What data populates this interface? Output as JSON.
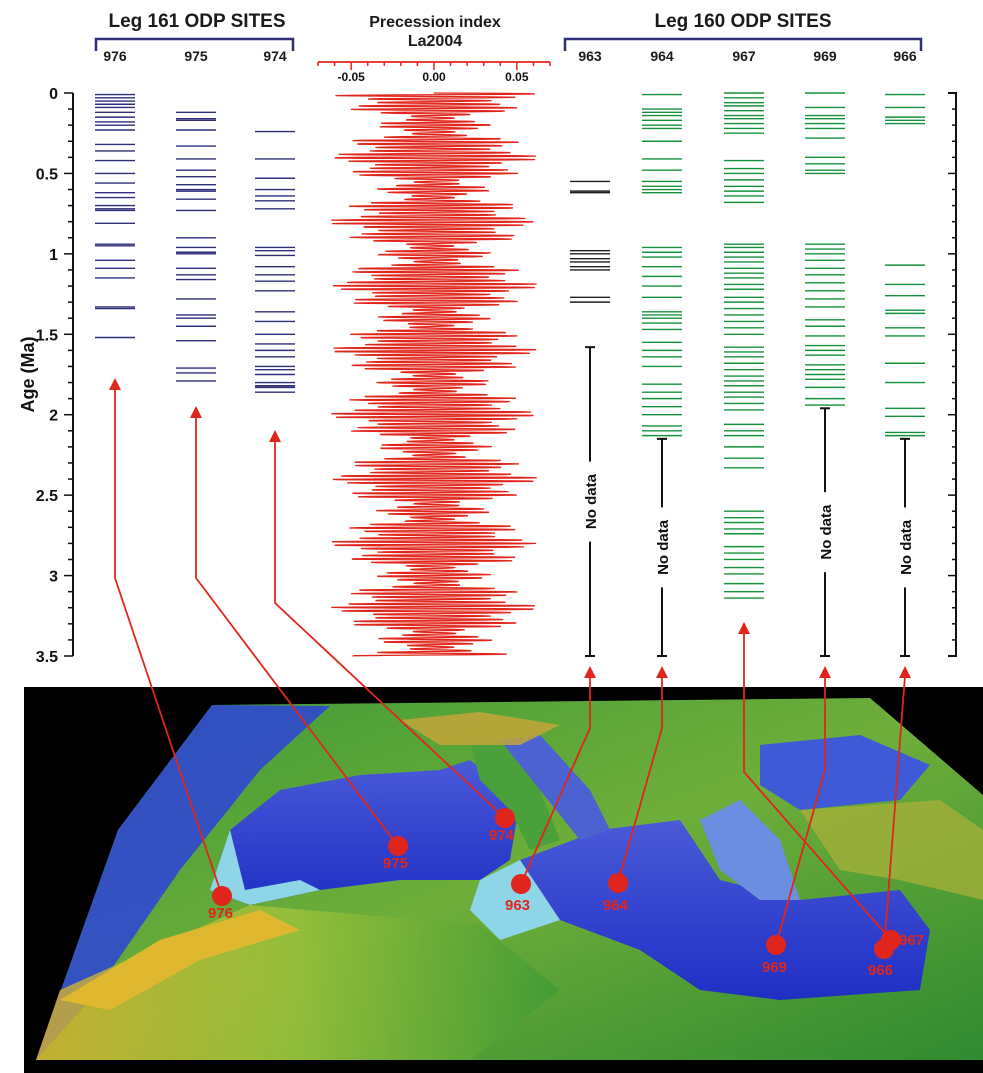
{
  "chart_data": {
    "type": "strip-log",
    "leg161": {
      "title": "Leg 161 ODP SITES",
      "sites": [
        {
          "id": "976",
          "data_until": 1.53,
          "layers": [
            0.01,
            0.03,
            0.05,
            0.07,
            0.09,
            0.12,
            0.15,
            0.18,
            0.2,
            0.23,
            0.32,
            0.36,
            0.42,
            0.5,
            0.56,
            0.62,
            0.65,
            0.7,
            0.72,
            0.73,
            0.81,
            0.94,
            0.95,
            1.04,
            1.09,
            1.15,
            1.33,
            1.34,
            1.52
          ]
        },
        {
          "id": "975",
          "data_until": 1.8,
          "layers": [
            0.12,
            0.16,
            0.17,
            0.23,
            0.33,
            0.41,
            0.48,
            0.52,
            0.57,
            0.6,
            0.61,
            0.66,
            0.73,
            0.9,
            0.96,
            0.99,
            1.0,
            1.09,
            1.13,
            1.16,
            1.28,
            1.38,
            1.4,
            1.45,
            1.54,
            1.71,
            1.74,
            1.79
          ]
        },
        {
          "id": "974",
          "data_until": 1.86,
          "layers": [
            0.24,
            0.41,
            0.53,
            0.6,
            0.64,
            0.67,
            0.72,
            0.96,
            0.98,
            1.01,
            1.08,
            1.13,
            1.17,
            1.23,
            1.36,
            1.42,
            1.5,
            1.56,
            1.6,
            1.64,
            1.7,
            1.72,
            1.75,
            1.8,
            1.82,
            1.83,
            1.86
          ]
        }
      ]
    },
    "precession": {
      "title_line1": "Precession index",
      "title_line2": "La2004",
      "xticks": [
        "-0.05",
        "0.00",
        "0.05"
      ],
      "xlim": [
        -0.07,
        0.07
      ]
    },
    "leg160": {
      "title": "Leg 160 ODP SITES",
      "sites": [
        {
          "id": "963",
          "color": "#1f1f1f",
          "layers": [
            0.55,
            0.61,
            0.62,
            0.98,
            1.0,
            1.03,
            1.05,
            1.08,
            1.1,
            1.27,
            1.3
          ],
          "no_data": {
            "from": 1.58,
            "to": 3.5,
            "label": "No data"
          }
        },
        {
          "id": "964",
          "color": "#16913b",
          "layers": [
            0.01,
            0.1,
            0.12,
            0.14,
            0.17,
            0.2,
            0.22,
            0.3,
            0.41,
            0.48,
            0.55,
            0.58,
            0.6,
            0.62,
            0.96,
            0.99,
            1.02,
            1.08,
            1.14,
            1.2,
            1.27,
            1.36,
            1.38,
            1.4,
            1.43,
            1.47,
            1.55,
            1.6,
            1.64,
            1.7,
            1.81,
            1.86,
            1.9,
            1.95,
            2.0,
            2.07,
            2.1,
            2.13
          ],
          "no_data": {
            "from": 2.15,
            "to": 3.5,
            "label": "No data"
          }
        },
        {
          "id": "967",
          "color": "#16913b",
          "layers": [
            0.0,
            0.03,
            0.06,
            0.08,
            0.11,
            0.14,
            0.16,
            0.19,
            0.22,
            0.25,
            0.42,
            0.47,
            0.5,
            0.54,
            0.58,
            0.61,
            0.64,
            0.68,
            0.94,
            0.96,
            0.99,
            1.02,
            1.05,
            1.09,
            1.12,
            1.15,
            1.19,
            1.22,
            1.27,
            1.3,
            1.34,
            1.38,
            1.42,
            1.46,
            1.5,
            1.58,
            1.61,
            1.64,
            1.68,
            1.72,
            1.76,
            1.79,
            1.82,
            1.86,
            1.89,
            1.93,
            1.97,
            2.06,
            2.1,
            2.13,
            2.2,
            2.27,
            2.33,
            2.6,
            2.64,
            2.67,
            2.71,
            2.74,
            2.82,
            2.86,
            2.9,
            2.95,
            2.99,
            3.05,
            3.1,
            3.14
          ],
          "no_data": null
        },
        {
          "id": "969",
          "color": "#16913b",
          "layers": [
            0.0,
            0.09,
            0.14,
            0.16,
            0.19,
            0.22,
            0.28,
            0.4,
            0.44,
            0.48,
            0.5,
            0.94,
            0.97,
            1.0,
            1.04,
            1.09,
            1.13,
            1.18,
            1.23,
            1.28,
            1.33,
            1.41,
            1.45,
            1.51,
            1.57,
            1.6,
            1.63,
            1.69,
            1.72,
            1.75,
            1.78,
            1.83,
            1.9,
            1.94
          ],
          "no_data": {
            "from": 1.96,
            "to": 3.5,
            "label": "No data"
          }
        },
        {
          "id": "966",
          "color": "#16913b",
          "layers": [
            0.01,
            0.09,
            0.15,
            0.17,
            0.19,
            1.07,
            1.19,
            1.26,
            1.35,
            1.37,
            1.46,
            1.51,
            1.68,
            1.8,
            1.96,
            2.01,
            2.11,
            2.13
          ],
          "no_data": {
            "from": 2.15,
            "to": 3.5,
            "label": "No data"
          }
        }
      ]
    },
    "y_axis": {
      "label": "Age (Ma)",
      "ticks": [
        "0",
        "0.5",
        "1",
        "1.5",
        "2",
        "2.5",
        "3",
        "3.5"
      ],
      "ylim": [
        0,
        3.5
      ]
    }
  },
  "map": {
    "site_markers": [
      "976",
      "975",
      "974",
      "963",
      "964",
      "969",
      "966",
      "967"
    ]
  },
  "colors": {
    "leg161": "#2e2e7a",
    "precession": "#e0261c",
    "leg160_green": "#16913b",
    "arrow": "#e0261c",
    "sea_deep": "#2a35c8",
    "sea_shallow": "#8fd5e8",
    "land_low": "#2c8a2c",
    "land_high": "#c8a020"
  }
}
